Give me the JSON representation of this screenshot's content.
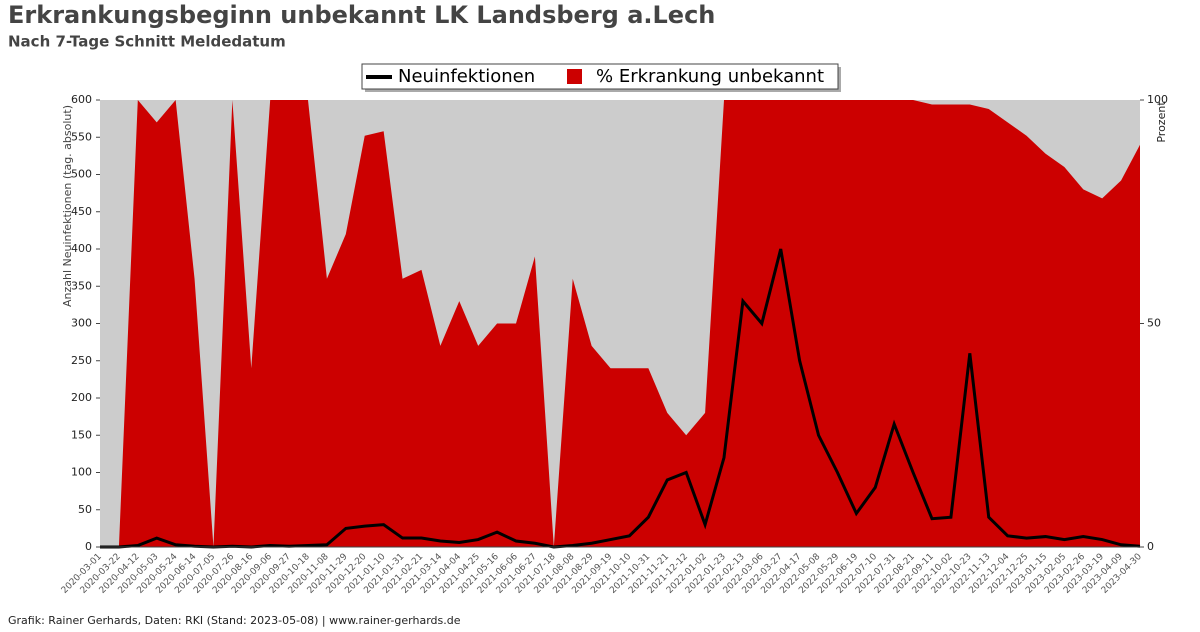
{
  "chart_data": {
    "type": "line",
    "title": "Erkrankungsbeginn unbekannt LK Landsberg a.Lech",
    "subtitle": "Nach 7-Tage Schnitt Meldedatum",
    "y_label": "Anzahl Neuinfektionen (tag. absolut)",
    "y2_label": "Prozent",
    "footer": "Grafik: Rainer Gerhards, Daten: RKI (Stand: 2023-05-08) | www.rainer-gerhards.de",
    "categories": [
      "2020-03-01",
      "2020-03-22",
      "2020-04-12",
      "2020-05-03",
      "2020-05-24",
      "2020-06-14",
      "2020-07-05",
      "2020-07-26",
      "2020-08-16",
      "2020-09-06",
      "2020-09-27",
      "2020-10-18",
      "2020-11-08",
      "2020-11-29",
      "2020-12-20",
      "2021-01-10",
      "2021-01-31",
      "2021-02-21",
      "2021-03-14",
      "2021-04-04",
      "2021-04-25",
      "2021-05-16",
      "2021-06-06",
      "2021-06-27",
      "2021-07-18",
      "2021-08-08",
      "2021-08-29",
      "2021-09-19",
      "2021-10-10",
      "2021-10-31",
      "2021-11-21",
      "2021-12-12",
      "2022-01-02",
      "2022-01-23",
      "2022-02-13",
      "2022-03-06",
      "2022-03-27",
      "2022-04-17",
      "2022-05-08",
      "2022-05-29",
      "2022-06-19",
      "2022-07-10",
      "2022-07-31",
      "2022-08-21",
      "2022-09-11",
      "2022-10-02",
      "2022-10-23",
      "2022-11-13",
      "2022-12-04",
      "2022-12-25",
      "2023-01-15",
      "2023-02-05",
      "2023-02-26",
      "2023-03-19",
      "2023-04-09",
      "2023-04-30"
    ],
    "series": [
      {
        "name": "Neuinfektionen",
        "color": "#000000",
        "values": [
          0,
          0,
          2,
          12,
          3,
          1,
          0,
          1,
          0,
          2,
          1,
          2,
          3,
          25,
          28,
          30,
          12,
          12,
          8,
          6,
          10,
          20,
          8,
          5,
          0,
          2,
          5,
          10,
          15,
          40,
          90,
          100,
          30,
          120,
          330,
          300,
          400,
          250,
          150,
          100,
          45,
          80,
          165,
          100,
          38,
          40,
          260,
          40,
          15,
          12,
          14,
          10,
          14,
          10,
          3,
          1
        ]
      },
      {
        "name": "% Erkrankung unbekannt",
        "color": "#cc0000",
        "axis": "y2",
        "values": [
          0,
          0,
          100,
          95,
          100,
          60,
          0,
          100,
          40,
          100,
          100,
          100,
          60,
          70,
          92,
          93,
          60,
          62,
          45,
          55,
          45,
          50,
          50,
          65,
          0,
          60,
          45,
          40,
          40,
          40,
          30,
          25,
          30,
          100,
          100,
          100,
          100,
          100,
          100,
          100,
          100,
          100,
          100,
          100,
          99,
          99,
          99,
          98,
          95,
          92,
          88,
          85,
          80,
          78,
          82,
          90
        ]
      }
    ],
    "ylim": [
      0,
      600
    ],
    "yticks": [
      0,
      50,
      100,
      150,
      200,
      250,
      300,
      350,
      400,
      450,
      500,
      550,
      600
    ],
    "y2lim": [
      0,
      100
    ],
    "y2ticks": [
      0,
      50,
      100
    ],
    "background": "#cccccc"
  }
}
